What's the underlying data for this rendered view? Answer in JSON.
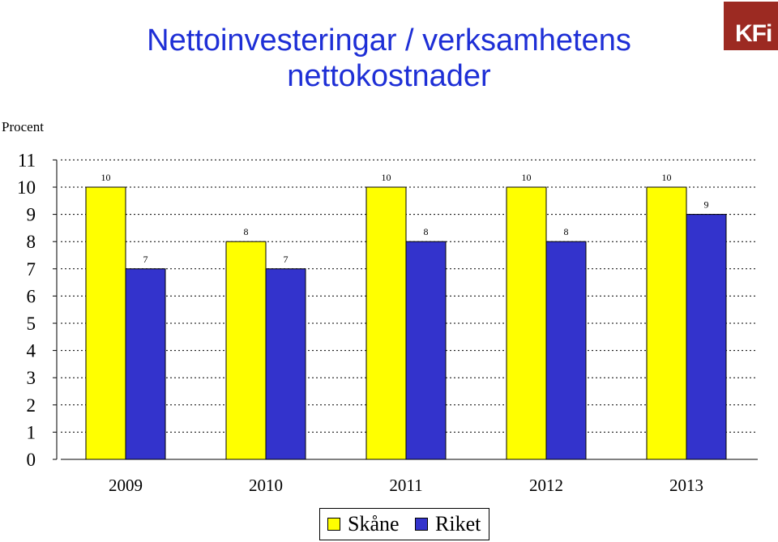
{
  "chart_data": {
    "type": "bar",
    "title": "Nettoinvesteringar / verksamhetens nettokostnader",
    "ylabel": "Procent",
    "xlabel": "",
    "categories": [
      "2009",
      "2010",
      "2011",
      "2012",
      "2013"
    ],
    "series": [
      {
        "name": "Skåne",
        "values": [
          10,
          8,
          10,
          10,
          10
        ],
        "color": "#ffff00"
      },
      {
        "name": "Riket",
        "values": [
          7,
          7,
          8,
          8,
          9
        ],
        "color": "#3333cc"
      }
    ],
    "ylim": [
      0,
      11
    ],
    "yticks": [
      "0",
      "1",
      "2",
      "3",
      "4",
      "5",
      "6",
      "7",
      "8",
      "9",
      "10",
      "11"
    ],
    "grid": true,
    "legend_position": "bottom"
  },
  "logo": {
    "text": "KFi",
    "color": "#9c2a22"
  }
}
